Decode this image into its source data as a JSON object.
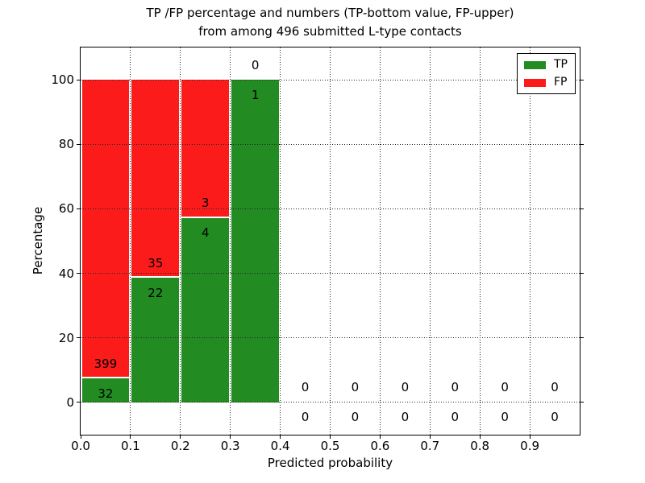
{
  "figure": {
    "title_line1": "TP /FP percentage and numbers (TP-bottom value, FP-upper)",
    "title_line2": "from among 496 submitted L-type contacts",
    "xlabel": "Predicted probability",
    "ylabel": "Percentage"
  },
  "legend": {
    "position": "upper right",
    "items": [
      {
        "label": "TP",
        "color": "#228b22"
      },
      {
        "label": "FP",
        "color": "#fb1b1b"
      }
    ]
  },
  "chart_data": {
    "type": "bar",
    "stacked": true,
    "title": "TP /FP percentage and numbers (TP-bottom value, FP-upper) from among 496 submitted L-type contacts",
    "xlabel": "Predicted probability",
    "ylabel": "Percentage",
    "total_submitted": 496,
    "xlim": [
      0.0,
      1.0
    ],
    "ylim": [
      -10,
      110
    ],
    "x_ticks": [
      "0.0",
      "0.1",
      "0.2",
      "0.3",
      "0.4",
      "0.5",
      "0.6",
      "0.7",
      "0.8",
      "0.9"
    ],
    "y_ticks": [
      0,
      20,
      40,
      60,
      80,
      100
    ],
    "grid": "dotted-both-axes",
    "legend_position": "upper right",
    "series": [
      {
        "name": "TP",
        "color": "#228b22",
        "stack_order": "bottom"
      },
      {
        "name": "FP",
        "color": "#fb1b1b",
        "stack_order": "top"
      }
    ],
    "bins": [
      {
        "range": [
          0.0,
          0.1
        ],
        "tp": 32,
        "fp": 399
      },
      {
        "range": [
          0.1,
          0.2
        ],
        "tp": 22,
        "fp": 35
      },
      {
        "range": [
          0.2,
          0.3
        ],
        "tp": 4,
        "fp": 3
      },
      {
        "range": [
          0.3,
          0.4
        ],
        "tp": 1,
        "fp": 0
      },
      {
        "range": [
          0.4,
          0.5
        ],
        "tp": 0,
        "fp": 0
      },
      {
        "range": [
          0.5,
          0.6
        ],
        "tp": 0,
        "fp": 0
      },
      {
        "range": [
          0.6,
          0.7
        ],
        "tp": 0,
        "fp": 0
      },
      {
        "range": [
          0.7,
          0.8
        ],
        "tp": 0,
        "fp": 0
      },
      {
        "range": [
          0.8,
          0.9
        ],
        "tp": 0,
        "fp": 0
      },
      {
        "range": [
          0.9,
          1.0
        ],
        "tp": 0,
        "fp": 0
      }
    ],
    "label_offset_pct": 4.6
  }
}
